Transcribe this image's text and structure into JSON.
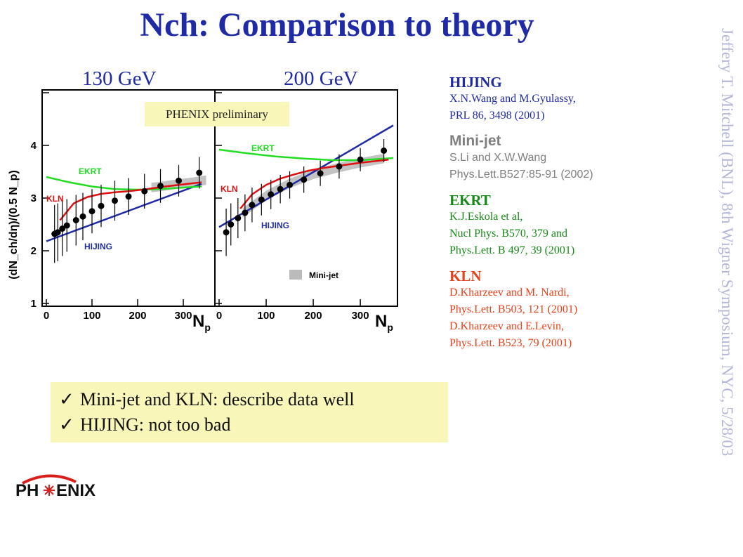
{
  "slide": {
    "title": "Nch: Comparison to theory",
    "energy_left": "130 GeV",
    "energy_right": "200 GeV",
    "preliminary": "PHENIX preliminary",
    "sidebar_text": "Jeffery T. Mitchell (BNL), 8th Wigner Symposium, NYC, 5/28/03",
    "logo_text": "PH ENIX",
    "colors": {
      "title": "#1f2aa6",
      "hijing": "#1f2aa6",
      "minijet": "#7f7f7f",
      "ekrt": "#168a16",
      "kln": "#e8401a"
    }
  },
  "references": [
    {
      "title": "HIJING",
      "color": "#1f2aa6",
      "lines": [
        "X.N.Wang and M.Gyulassy,",
        "PRL 86, 3498 (2001)"
      ]
    },
    {
      "title": "Mini-jet",
      "color": "#7f7f7f",
      "lines": [
        "S.Li and X.W.Wang",
        "Phys.Lett.B527:85-91 (2002)"
      ]
    },
    {
      "title": "EKRT",
      "color": "#168a16",
      "lines": [
        "K.J.Eskola et al,",
        "Nucl Phys. B570, 379 and",
        "Phys.Lett. B 497, 39 (2001)"
      ]
    },
    {
      "title": "KLN",
      "color": "#e8401a",
      "lines": [
        "D.Kharzeev and M. Nardi,",
        "Phys.Lett. B503, 121 (2001)",
        "D.Kharzeev and E.Levin,",
        "Phys.Lett. B523, 79 (2001)"
      ]
    }
  ],
  "summary": {
    "items": [
      "Mini-jet and KLN: describe data well",
      "HIJING: not too bad"
    ]
  },
  "chart_data": [
    {
      "type": "scatter",
      "panel": "130 GeV",
      "ylabel": "(dN_ch/dη)/(0.5 N_p)",
      "xlabel": "N_p",
      "xlim": [
        0,
        360
      ],
      "ylim": [
        1,
        5
      ],
      "x_ticks": [
        0,
        100,
        200,
        300
      ],
      "y_ticks": [
        1,
        2,
        3,
        4
      ],
      "series": [
        {
          "name": "data",
          "x": [
            18,
            25,
            35,
            45,
            65,
            80,
            100,
            120,
            150,
            180,
            215,
            250,
            290,
            335
          ],
          "y": [
            2.32,
            2.35,
            2.42,
            2.48,
            2.58,
            2.65,
            2.75,
            2.85,
            2.95,
            3.03,
            3.13,
            3.23,
            3.33,
            3.48
          ],
          "err": [
            0.55,
            0.55,
            0.52,
            0.5,
            0.48,
            0.45,
            0.42,
            0.4,
            0.38,
            0.35,
            0.33,
            0.32,
            0.3,
            0.3
          ]
        },
        {
          "name": "HIJING",
          "x": [
            0,
            340
          ],
          "y": [
            2.18,
            3.27
          ]
        },
        {
          "name": "EKRT",
          "x": [
            0,
            50,
            100,
            150,
            200,
            250,
            300,
            340
          ],
          "y": [
            3.4,
            3.3,
            3.22,
            3.17,
            3.16,
            3.17,
            3.2,
            3.22
          ]
        },
        {
          "name": "KLN",
          "x": [
            30,
            60,
            90,
            120,
            150,
            180,
            220,
            260,
            300,
            340
          ],
          "y": [
            2.58,
            2.9,
            3.02,
            3.08,
            3.11,
            3.13,
            3.17,
            3.22,
            3.26,
            3.3
          ]
        },
        {
          "name": "Mini-jet",
          "x": [
            230,
            260,
            290,
            320,
            350
          ],
          "y": [
            3.2,
            3.23,
            3.27,
            3.3,
            3.34
          ]
        }
      ],
      "labels": [
        "EKRT",
        "KLN",
        "HIJING"
      ]
    },
    {
      "type": "scatter",
      "panel": "200 GeV",
      "xlabel": "N_p",
      "xlim": [
        0,
        370
      ],
      "ylim": [
        1,
        5
      ],
      "x_ticks": [
        0,
        100,
        200,
        300
      ],
      "series": [
        {
          "name": "data",
          "x": [
            15,
            25,
            40,
            55,
            70,
            90,
            110,
            130,
            150,
            180,
            215,
            255,
            300,
            350
          ],
          "y": [
            2.35,
            2.5,
            2.62,
            2.72,
            2.87,
            2.97,
            3.07,
            3.17,
            3.25,
            3.35,
            3.47,
            3.6,
            3.73,
            3.9
          ],
          "err": [
            0.45,
            0.4,
            0.38,
            0.35,
            0.33,
            0.3,
            0.28,
            0.27,
            0.26,
            0.25,
            0.24,
            0.23,
            0.22,
            0.22
          ]
        },
        {
          "name": "HIJING",
          "x": [
            0,
            370
          ],
          "y": [
            2.45,
            4.38
          ]
        },
        {
          "name": "EKRT",
          "x": [
            0,
            60,
            120,
            180,
            240,
            300,
            370
          ],
          "y": [
            3.92,
            3.85,
            3.79,
            3.75,
            3.72,
            3.72,
            3.76
          ]
        },
        {
          "name": "KLN",
          "x": [
            45,
            70,
            100,
            130,
            160,
            190,
            220,
            260,
            300,
            340,
            360
          ],
          "y": [
            2.8,
            3.07,
            3.25,
            3.37,
            3.45,
            3.52,
            3.57,
            3.62,
            3.67,
            3.71,
            3.73
          ]
        },
        {
          "name": "Mini-jet",
          "x": [
            50,
            100,
            150,
            200,
            250,
            300,
            350
          ],
          "y": [
            2.72,
            3.05,
            3.28,
            3.45,
            3.57,
            3.67,
            3.75
          ]
        }
      ],
      "labels": [
        "EKRT",
        "KLN",
        "HIJING",
        "Mini-jet"
      ]
    }
  ]
}
